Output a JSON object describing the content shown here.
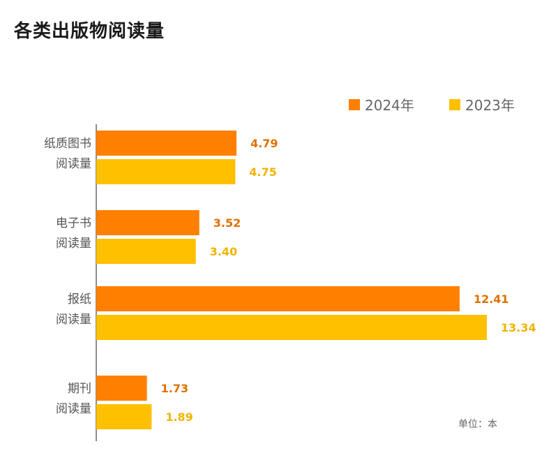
{
  "title": "各类出版物阅读量",
  "unit_label": "单位：本",
  "colors": {
    "2024": "#FF8000",
    "2023": "#FFC000",
    "axis": "#666666"
  },
  "chart_data": {
    "type": "bar",
    "orientation": "horizontal",
    "title": "各类出版物阅读量",
    "categories": [
      [
        "纸质图书",
        "阅读量"
      ],
      [
        "电子书",
        "阅读量"
      ],
      [
        "报纸",
        "阅读量"
      ],
      [
        "期刊",
        "阅读量"
      ]
    ],
    "series": [
      {
        "name": "2024年",
        "values": [
          4.79,
          3.52,
          12.41,
          1.73
        ],
        "labels": [
          "4.79",
          "3.52",
          "12.41",
          "1.73"
        ]
      },
      {
        "name": "2023年",
        "values": [
          4.75,
          3.4,
          13.34,
          1.89
        ],
        "labels": [
          "4.75",
          "3.40",
          "13.34",
          "1.89"
        ]
      }
    ],
    "xlim": [
      0,
      13.34
    ],
    "legend": "top-right",
    "grid": false
  }
}
